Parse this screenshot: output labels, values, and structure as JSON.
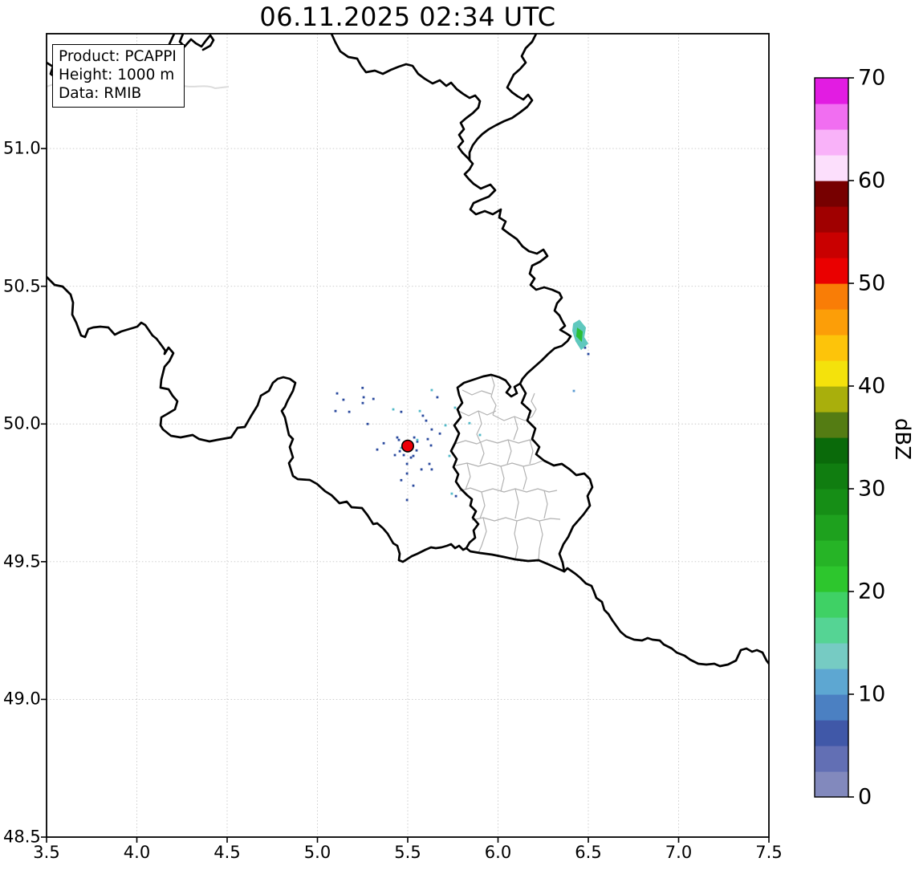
{
  "title": "06.11.2025 02:34 UTC",
  "legend": {
    "product_line": "Product: PCAPPI",
    "height_line": "Height: 1000 m",
    "data_line": "Data: RMIB"
  },
  "axes": {
    "x_ticks": [
      "3.5",
      "4.0",
      "4.5",
      "5.0",
      "5.5",
      "6.0",
      "6.5",
      "7.0",
      "7.5"
    ],
    "x_tick_values": [
      3.5,
      4.0,
      4.5,
      5.0,
      5.5,
      6.0,
      6.5,
      7.0,
      7.5
    ],
    "y_ticks": [
      "48.5",
      "49.0",
      "49.5",
      "50.0",
      "50.5",
      "51.0"
    ],
    "y_tick_values": [
      48.5,
      49.0,
      49.5,
      50.0,
      50.5,
      51.0
    ],
    "xlim": [
      3.5,
      7.5
    ],
    "ylim": [
      48.5,
      51.417
    ],
    "grid": "dotted"
  },
  "colorbar": {
    "label": "dBZ",
    "tick_labels": [
      "0",
      "10",
      "20",
      "30",
      "40",
      "50",
      "60",
      "70"
    ],
    "tick_values": [
      0,
      10,
      20,
      30,
      40,
      50,
      60,
      70
    ],
    "min": 0,
    "max": 70,
    "step": 2.5,
    "colors_bottom_to_top": [
      "#8289bd",
      "#626fb4",
      "#4058a8",
      "#4b80c2",
      "#5da7d2",
      "#76cbc3",
      "#55d494",
      "#3fd165",
      "#2dc62d",
      "#26b426",
      "#1ea11e",
      "#168e16",
      "#107d10",
      "#0a6a0a",
      "#547c13",
      "#a9af0c",
      "#f4e20c",
      "#fdc40a",
      "#fc9e08",
      "#f97d06",
      "#ea0000",
      "#c90000",
      "#a00000",
      "#770000",
      "#fcdffc",
      "#f9b2f9",
      "#f16ef1",
      "#e21ce2"
    ]
  },
  "chart_data": {
    "type": "radar_reflectivity_map",
    "title": "06.11.2025 02:34 UTC",
    "product": "PCAPPI",
    "height": "1000 m",
    "source": "RMIB",
    "units": "dBZ",
    "lon_range": [
      3.5,
      7.5
    ],
    "lat_range": [
      48.5,
      51.417
    ],
    "colorbar_range": [
      0,
      70
    ],
    "radar_site": {
      "lon": 5.5,
      "lat": 49.92,
      "marker_color": "#ec0008"
    },
    "cells": [
      {
        "center_lon": 6.46,
        "center_lat": 50.32,
        "approx_max_dbz": 25,
        "outer_color": "#5fc8be",
        "inner_color": "#2bbf35",
        "outer_poly": [
          [
            6.416,
            50.365
          ],
          [
            6.451,
            50.379
          ],
          [
            6.487,
            50.35
          ],
          [
            6.478,
            50.315
          ],
          [
            6.5,
            50.292
          ],
          [
            6.46,
            50.268
          ],
          [
            6.429,
            50.3
          ],
          [
            6.411,
            50.338
          ]
        ],
        "inner_poly": [
          [
            6.438,
            50.35
          ],
          [
            6.469,
            50.336
          ],
          [
            6.464,
            50.298
          ],
          [
            6.433,
            50.318
          ]
        ]
      }
    ],
    "speckle_colors": {
      "n": "#2a4a9e",
      "c": "#54bac9",
      "b": "#5a9ad2"
    },
    "speckles": [
      [
        5.25,
        50.131,
        "n"
      ],
      [
        5.256,
        50.097,
        "n"
      ],
      [
        5.31,
        50.091,
        "n"
      ],
      [
        5.1,
        50.047,
        "n"
      ],
      [
        5.176,
        50.044,
        "n"
      ],
      [
        5.42,
        50.053,
        "c"
      ],
      [
        5.464,
        50.044,
        "n"
      ],
      [
        5.567,
        50.047,
        "c"
      ],
      [
        5.584,
        50.03,
        "n"
      ],
      [
        5.602,
        50.012,
        "n"
      ],
      [
        5.762,
        50.059,
        "c"
      ],
      [
        5.842,
        50.003,
        "c"
      ],
      [
        5.633,
        49.98,
        "n"
      ],
      [
        5.451,
        49.942,
        "n"
      ],
      [
        5.553,
        49.936,
        "n"
      ],
      [
        5.611,
        49.945,
        "n"
      ],
      [
        5.429,
        49.887,
        "n"
      ],
      [
        5.464,
        49.913,
        "c"
      ],
      [
        5.496,
        49.855,
        "n"
      ],
      [
        5.518,
        49.878,
        "n"
      ],
      [
        5.629,
        49.922,
        "n"
      ],
      [
        5.496,
        49.82,
        "n"
      ],
      [
        5.633,
        49.835,
        "n"
      ],
      [
        5.744,
        49.747,
        "c"
      ],
      [
        5.496,
        49.724,
        "n"
      ],
      [
        5.278,
        50.0,
        "n"
      ],
      [
        5.367,
        49.93,
        "n"
      ],
      [
        5.331,
        49.907,
        "n"
      ],
      [
        5.442,
        49.951,
        "n"
      ],
      [
        5.553,
        49.942,
        "c"
      ],
      [
        5.456,
        49.901,
        "n"
      ],
      [
        5.531,
        49.884,
        "n"
      ],
      [
        5.576,
        49.835,
        "n"
      ],
      [
        5.62,
        49.855,
        "n"
      ],
      [
        5.464,
        49.796,
        "n"
      ],
      [
        5.531,
        49.776,
        "n"
      ],
      [
        5.731,
        49.884,
        "c"
      ],
      [
        5.633,
        50.123,
        "c"
      ],
      [
        5.664,
        50.097,
        "n"
      ],
      [
        5.251,
        50.076,
        "n"
      ],
      [
        5.767,
        49.738,
        "n"
      ],
      [
        5.109,
        50.111,
        "n"
      ],
      [
        5.144,
        50.088,
        "n"
      ],
      [
        5.678,
        49.965,
        "n"
      ],
      [
        5.709,
        49.995,
        "c"
      ],
      [
        5.536,
        49.951,
        "n"
      ],
      [
        5.549,
        49.904,
        "n"
      ],
      [
        5.478,
        49.887,
        "n"
      ],
      [
        6.482,
        50.277,
        "n"
      ],
      [
        6.5,
        50.254,
        "n"
      ],
      [
        6.42,
        50.12,
        "b"
      ],
      [
        5.9,
        49.96,
        "c"
      ]
    ]
  }
}
